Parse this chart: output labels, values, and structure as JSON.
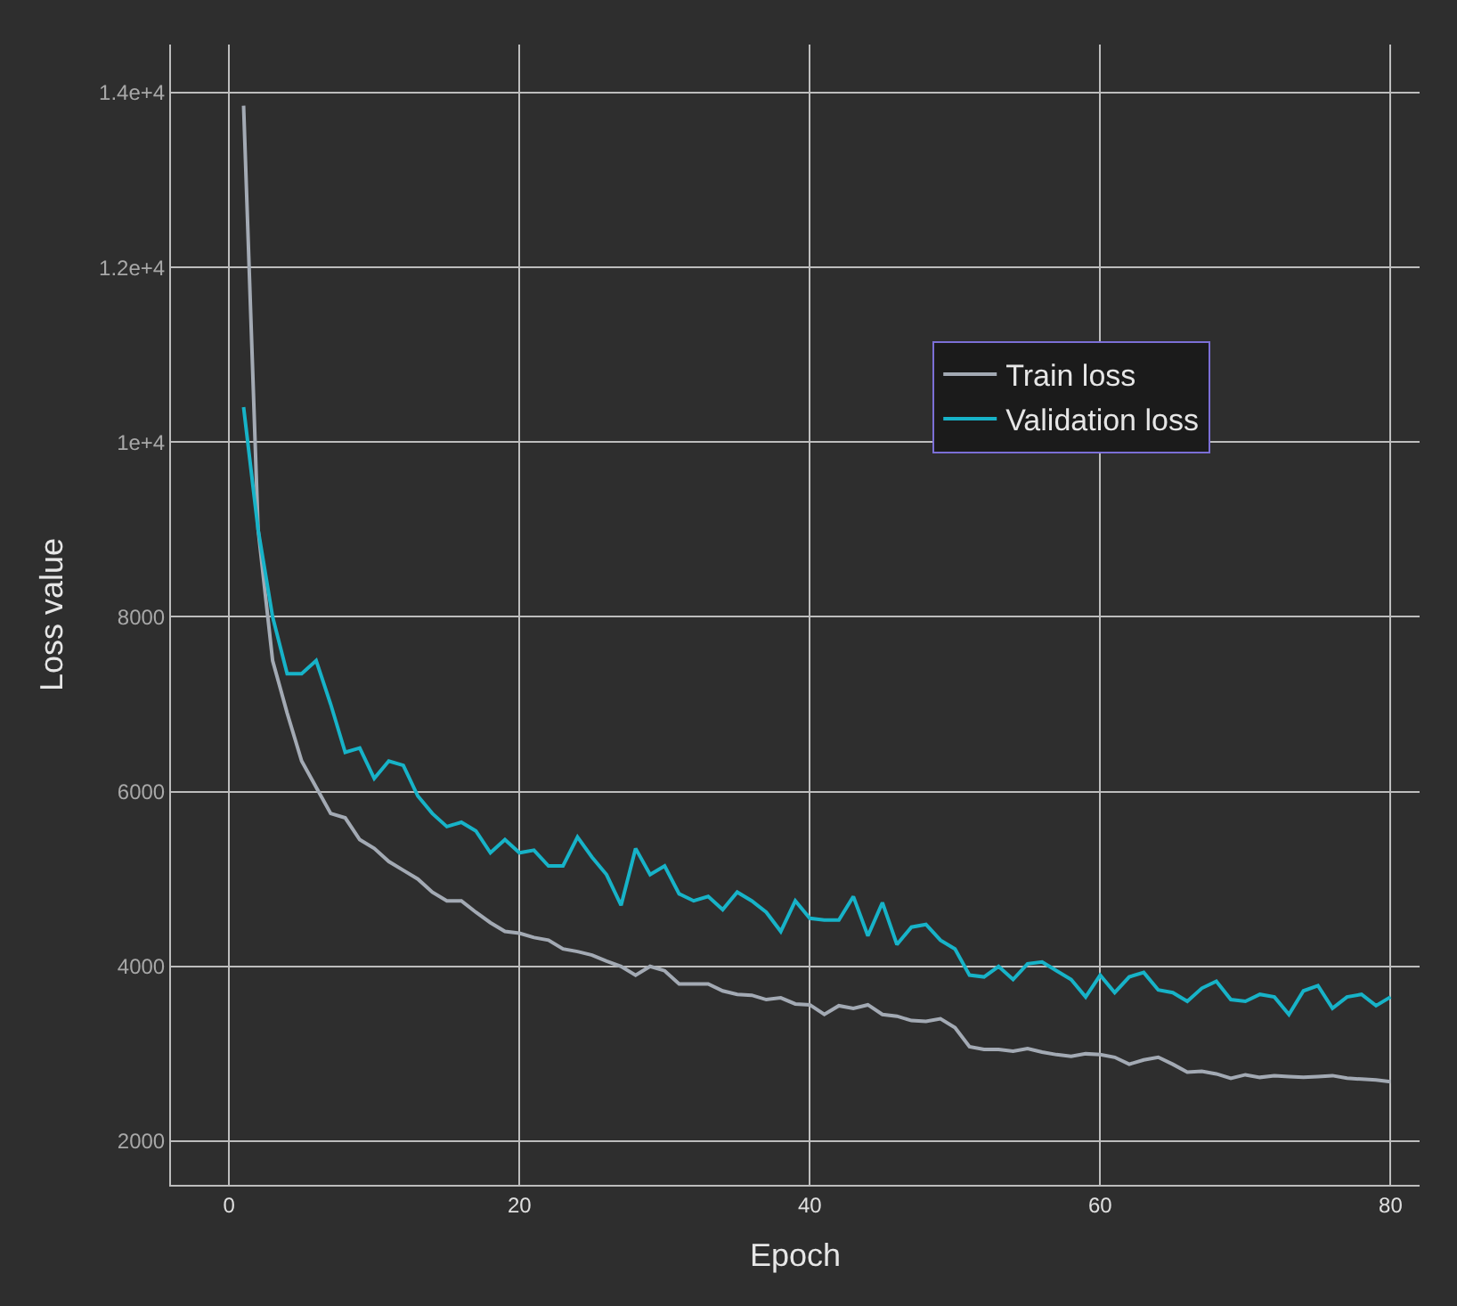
{
  "chart_data": {
    "type": "line",
    "xlabel": "Epoch",
    "ylabel": "Loss value",
    "x": [
      1,
      2,
      3,
      4,
      5,
      6,
      7,
      8,
      9,
      10,
      11,
      12,
      13,
      14,
      15,
      16,
      17,
      18,
      19,
      20,
      21,
      22,
      23,
      24,
      25,
      26,
      27,
      28,
      29,
      30,
      31,
      32,
      33,
      34,
      35,
      36,
      37,
      38,
      39,
      40,
      41,
      42,
      43,
      44,
      45,
      46,
      47,
      48,
      49,
      50,
      51,
      52,
      53,
      54,
      55,
      56,
      57,
      58,
      59,
      60,
      61,
      62,
      63,
      64,
      65,
      66,
      67,
      68,
      69,
      70,
      71,
      72,
      73,
      74,
      75,
      76,
      77,
      78,
      79,
      80
    ],
    "series": [
      {
        "name": "Train loss",
        "color": "#a3aab4",
        "values": [
          13850,
          9000,
          7500,
          6900,
          6350,
          6050,
          5750,
          5700,
          5450,
          5350,
          5200,
          5100,
          5000,
          4850,
          4750,
          4750,
          4620,
          4500,
          4400,
          4380,
          4330,
          4300,
          4200,
          4170,
          4130,
          4060,
          4000,
          3900,
          4000,
          3950,
          3800,
          3800,
          3800,
          3720,
          3680,
          3670,
          3620,
          3640,
          3570,
          3560,
          3450,
          3550,
          3520,
          3560,
          3450,
          3430,
          3380,
          3370,
          3400,
          3300,
          3080,
          3050,
          3050,
          3030,
          3060,
          3020,
          2990,
          2970,
          3000,
          2990,
          2960,
          2880,
          2930,
          2960,
          2880,
          2790,
          2800,
          2770,
          2720,
          2760,
          2730,
          2750,
          2740,
          2730,
          2740,
          2750,
          2720,
          2710,
          2700,
          2680
        ]
      },
      {
        "name": "Validation loss",
        "color": "#17b3c8",
        "values": [
          10400,
          9000,
          8000,
          7350,
          7350,
          7500,
          7000,
          6450,
          6500,
          6150,
          6350,
          6300,
          5950,
          5750,
          5600,
          5650,
          5550,
          5300,
          5450,
          5300,
          5330,
          5150,
          5150,
          5480,
          5250,
          5050,
          4700,
          5350,
          5050,
          5150,
          4830,
          4750,
          4800,
          4650,
          4850,
          4750,
          4620,
          4400,
          4750,
          4550,
          4530,
          4530,
          4800,
          4350,
          4730,
          4250,
          4450,
          4480,
          4300,
          4200,
          3900,
          3880,
          4000,
          3850,
          4030,
          4050,
          3950,
          3850,
          3650,
          3900,
          3700,
          3880,
          3930,
          3730,
          3700,
          3600,
          3750,
          3830,
          3620,
          3600,
          3680,
          3650,
          3450,
          3720,
          3780,
          3520,
          3650,
          3680,
          3550,
          3650
        ]
      }
    ],
    "xlim": [
      -4,
      82
    ],
    "xticks": [
      0,
      20,
      40,
      60,
      80
    ],
    "ylim": [
      1500,
      14550
    ],
    "yticks": [
      2000,
      4000,
      6000,
      8000,
      {
        "value": 10000,
        "label": "1e+4"
      },
      {
        "value": 12000,
        "label": "1.2e+4"
      },
      {
        "value": 14000,
        "label": "1.4e+4"
      }
    ],
    "grid": true,
    "legend": "top right",
    "marker": "none",
    "line_style": "solid"
  }
}
